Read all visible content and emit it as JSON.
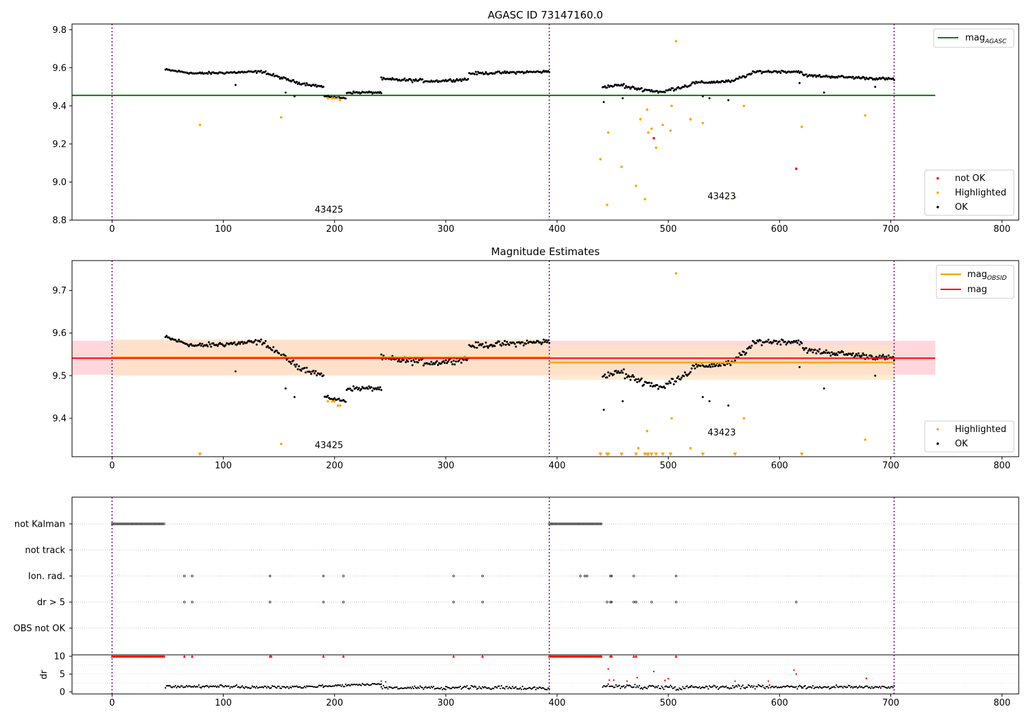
{
  "colors": {
    "ok": "#000000",
    "highlighted": "#ffa500",
    "not_ok": "#ff0000",
    "agasc_line": "#008000",
    "obsid_line": "#ffa500",
    "mag_line": "#ff0000",
    "obs_divider": "#800080",
    "band_obsid": "#ffe4c4",
    "band_mag": "#ffb6c1",
    "flag_grid": "#b0b0b0"
  },
  "chart_data": [
    {
      "type": "scatter",
      "title": "AGASC ID 73147160.0",
      "xlabel": "",
      "ylabel": "",
      "xlim": [
        -36,
        815
      ],
      "ylim": [
        8.8,
        9.83
      ],
      "x_ticks": [
        "0",
        "100",
        "200",
        "300",
        "400",
        "500",
        "600",
        "700",
        "800"
      ],
      "y_ticks": [
        "8.8",
        "9.0",
        "9.2",
        "9.4",
        "9.6",
        "9.8"
      ],
      "hline_mag_agasc": {
        "y": 9.455,
        "x_range": [
          -36,
          740
        ]
      },
      "obs_dividers": [
        0,
        393,
        703
      ],
      "obsid_labels": [
        {
          "text": "43425",
          "x": 195,
          "y": 8.84
        },
        {
          "text": "43423",
          "x": 548,
          "y": 8.91
        }
      ],
      "legend_lines": [
        {
          "label": "mag",
          "subscript": "AGASC"
        }
      ],
      "legend_points": [
        {
          "label": "not OK"
        },
        {
          "label": "Highlighted"
        },
        {
          "label": "OK"
        }
      ],
      "ok_segments": [
        {
          "x": [
            48,
            74
          ],
          "y": [
            9.59,
            9.57
          ],
          "noise": 0.008
        },
        {
          "x": [
            75,
            138
          ],
          "y": [
            9.57,
            9.58
          ],
          "noise": 0.009
        },
        {
          "x": [
            139,
            168
          ],
          "y": [
            9.57,
            9.52
          ],
          "noise": 0.01
        },
        {
          "x": [
            169,
            190
          ],
          "y": [
            9.52,
            9.5
          ],
          "noise": 0.01
        },
        {
          "x": [
            191,
            210
          ],
          "y": [
            9.45,
            9.44
          ],
          "noise": 0.005
        },
        {
          "x": [
            211,
            242
          ],
          "y": [
            9.47,
            9.47
          ],
          "noise": 0.008
        },
        {
          "x": [
            242,
            290
          ],
          "y": [
            9.54,
            9.53
          ],
          "noise": 0.012
        },
        {
          "x": [
            291,
            320
          ],
          "y": [
            9.53,
            9.54
          ],
          "noise": 0.01
        },
        {
          "x": [
            321,
            393
          ],
          "y": [
            9.57,
            9.58
          ],
          "noise": 0.01
        },
        {
          "x": [
            441,
            460
          ],
          "y": [
            9.5,
            9.51
          ],
          "noise": 0.01
        },
        {
          "x": [
            461,
            497
          ],
          "y": [
            9.5,
            9.47
          ],
          "noise": 0.012
        },
        {
          "x": [
            498,
            520
          ],
          "y": [
            9.48,
            9.51
          ],
          "noise": 0.012
        },
        {
          "x": [
            521,
            560
          ],
          "y": [
            9.52,
            9.53
          ],
          "noise": 0.01
        },
        {
          "x": [
            561,
            580
          ],
          "y": [
            9.54,
            9.58
          ],
          "noise": 0.012
        },
        {
          "x": [
            581,
            620
          ],
          "y": [
            9.58,
            9.58
          ],
          "noise": 0.01
        },
        {
          "x": [
            621,
            703
          ],
          "y": [
            9.56,
            9.54
          ],
          "noise": 0.01
        }
      ],
      "ok_outliers": [
        [
          111,
          9.51
        ],
        [
          156,
          9.47
        ],
        [
          164,
          9.45
        ],
        [
          442,
          9.42
        ],
        [
          459,
          9.44
        ],
        [
          531,
          9.45
        ],
        [
          537,
          9.44
        ],
        [
          554,
          9.43
        ],
        [
          618,
          9.52
        ],
        [
          640,
          9.47
        ],
        [
          686,
          9.5
        ]
      ],
      "highlighted": [
        [
          79,
          9.3
        ],
        [
          152,
          9.34
        ],
        [
          194,
          9.44
        ],
        [
          198,
          9.44
        ],
        [
          200,
          9.44
        ],
        [
          203,
          9.44
        ],
        [
          205,
          9.43
        ],
        [
          439,
          9.12
        ],
        [
          445,
          8.88
        ],
        [
          446,
          9.26
        ],
        [
          458,
          9.08
        ],
        [
          471,
          8.98
        ],
        [
          475,
          9.33
        ],
        [
          479,
          8.91
        ],
        [
          481,
          9.38
        ],
        [
          482,
          9.26
        ],
        [
          485,
          9.28
        ],
        [
          489,
          9.18
        ],
        [
          495,
          9.3
        ],
        [
          502,
          9.27
        ],
        [
          503,
          9.4
        ],
        [
          507,
          9.74
        ],
        [
          520,
          9.33
        ],
        [
          531,
          9.31
        ],
        [
          560,
          8.92
        ],
        [
          568,
          9.4
        ],
        [
          620,
          9.29
        ],
        [
          677,
          9.35
        ]
      ],
      "not_ok": [
        [
          487,
          9.23
        ],
        [
          615,
          9.07
        ]
      ]
    },
    {
      "type": "scatter",
      "title": "Magnitude Estimates",
      "xlabel": "",
      "ylabel": "",
      "xlim": [
        -36,
        815
      ],
      "ylim": [
        9.31,
        9.77
      ],
      "x_ticks": [
        "0",
        "100",
        "200",
        "300",
        "400",
        "500",
        "600",
        "700",
        "800"
      ],
      "y_ticks": [
        "9.4",
        "9.5",
        "9.6",
        "9.7"
      ],
      "mag": {
        "y": 9.541,
        "band": [
          9.502,
          9.582
        ],
        "x_range": [
          -36,
          740
        ]
      },
      "mag_obsid": [
        {
          "x_range": [
            0,
            393
          ],
          "y": 9.543,
          "band": [
            9.5,
            9.585
          ]
        },
        {
          "x_range": [
            393,
            703
          ],
          "y": 9.531,
          "band": [
            9.49,
            9.572
          ]
        }
      ],
      "obs_dividers": [
        0,
        393,
        703
      ],
      "obsid_labels": [
        {
          "text": "43425",
          "x": 195,
          "y": 9.33
        },
        {
          "text": "43423",
          "x": 548,
          "y": 9.36
        }
      ],
      "legend_lines": [
        {
          "label": "mag",
          "subscript": "OBSID"
        },
        {
          "label": "mag"
        }
      ],
      "legend_points": [
        {
          "label": "Highlighted"
        },
        {
          "label": "OK"
        }
      ],
      "ok_segments": [
        {
          "x": [
            48,
            74
          ],
          "y": [
            9.59,
            9.57
          ],
          "noise": 0.008
        },
        {
          "x": [
            75,
            138
          ],
          "y": [
            9.57,
            9.58
          ],
          "noise": 0.009
        },
        {
          "x": [
            139,
            168
          ],
          "y": [
            9.57,
            9.52
          ],
          "noise": 0.01
        },
        {
          "x": [
            169,
            190
          ],
          "y": [
            9.52,
            9.5
          ],
          "noise": 0.01
        },
        {
          "x": [
            191,
            210
          ],
          "y": [
            9.45,
            9.44
          ],
          "noise": 0.005
        },
        {
          "x": [
            211,
            242
          ],
          "y": [
            9.47,
            9.47
          ],
          "noise": 0.008
        },
        {
          "x": [
            242,
            290
          ],
          "y": [
            9.54,
            9.53
          ],
          "noise": 0.012
        },
        {
          "x": [
            291,
            320
          ],
          "y": [
            9.53,
            9.54
          ],
          "noise": 0.01
        },
        {
          "x": [
            321,
            393
          ],
          "y": [
            9.57,
            9.58
          ],
          "noise": 0.01
        },
        {
          "x": [
            441,
            460
          ],
          "y": [
            9.5,
            9.51
          ],
          "noise": 0.01
        },
        {
          "x": [
            461,
            497
          ],
          "y": [
            9.5,
            9.47
          ],
          "noise": 0.012
        },
        {
          "x": [
            498,
            520
          ],
          "y": [
            9.48,
            9.51
          ],
          "noise": 0.012
        },
        {
          "x": [
            521,
            560
          ],
          "y": [
            9.52,
            9.53
          ],
          "noise": 0.01
        },
        {
          "x": [
            561,
            580
          ],
          "y": [
            9.54,
            9.58
          ],
          "noise": 0.012
        },
        {
          "x": [
            581,
            620
          ],
          "y": [
            9.58,
            9.58
          ],
          "noise": 0.01
        },
        {
          "x": [
            621,
            703
          ],
          "y": [
            9.56,
            9.54
          ],
          "noise": 0.01
        }
      ],
      "ok_outliers": [
        [
          111,
          9.51
        ],
        [
          156,
          9.47
        ],
        [
          164,
          9.45
        ],
        [
          442,
          9.42
        ],
        [
          459,
          9.44
        ],
        [
          531,
          9.45
        ],
        [
          537,
          9.44
        ],
        [
          554,
          9.43
        ],
        [
          618,
          9.52
        ],
        [
          640,
          9.47
        ],
        [
          686,
          9.5
        ]
      ],
      "highlighted": [
        [
          152,
          9.34
        ],
        [
          194,
          9.44
        ],
        [
          198,
          9.44
        ],
        [
          200,
          9.44
        ],
        [
          203,
          9.43
        ],
        [
          205,
          9.43
        ],
        [
          473,
          9.33
        ],
        [
          481,
          9.37
        ],
        [
          503,
          9.4
        ],
        [
          507,
          9.74
        ],
        [
          520,
          9.33
        ],
        [
          568,
          9.4
        ],
        [
          677,
          9.35
        ]
      ],
      "below_range_markers": [
        79,
        439,
        445,
        446,
        458,
        471,
        479,
        481,
        482,
        485,
        489,
        495,
        502,
        531,
        560,
        620
      ]
    },
    {
      "type": "scatter",
      "title": "",
      "xlabel": "",
      "ylabel": "dr",
      "xlim": [
        -36,
        815
      ],
      "flag_rows": [
        "not Kalman",
        "not track",
        "Ion. rad.",
        "dr > 5",
        "OBS not OK"
      ],
      "x_ticks": [
        "0",
        "100",
        "200",
        "300",
        "400",
        "500",
        "600",
        "700",
        "800"
      ],
      "dr_ylim": [
        0,
        10
      ],
      "dr_y_ticks": [
        "0",
        "5",
        "10"
      ],
      "obs_dividers": [
        0,
        393,
        703
      ],
      "not_kalman_ranges": [
        [
          0,
          48
        ],
        [
          393,
          440
        ]
      ],
      "ion_rad": [
        65,
        72,
        142,
        190,
        208,
        307,
        333,
        421,
        425,
        427,
        448,
        449,
        469,
        507
      ],
      "dr_gt5": [
        65,
        72,
        142,
        190,
        208,
        307,
        333,
        445,
        448,
        449,
        469,
        471,
        485,
        507,
        615
      ],
      "dr_clipped": [
        65,
        72,
        142,
        143,
        190,
        208,
        307,
        333,
        448,
        449,
        469,
        471,
        507
      ],
      "dr_segments": [
        {
          "x": [
            48,
            118
          ],
          "y": [
            1.5,
            1.5
          ],
          "noise": 0.6
        },
        {
          "x": [
            118,
            190
          ],
          "y": [
            1.2,
            1.6
          ],
          "noise": 0.6
        },
        {
          "x": [
            190,
            242
          ],
          "y": [
            1.6,
            2.3
          ],
          "noise": 0.5
        },
        {
          "x": [
            242,
            300
          ],
          "y": [
            1.2,
            1.0
          ],
          "noise": 0.7
        },
        {
          "x": [
            300,
            393
          ],
          "y": [
            1.3,
            1.0
          ],
          "noise": 0.7
        },
        {
          "x": [
            441,
            520
          ],
          "y": [
            1.6,
            1.2
          ],
          "noise": 1.0
        },
        {
          "x": [
            520,
            620
          ],
          "y": [
            1.4,
            1.5
          ],
          "noise": 0.8
        },
        {
          "x": [
            620,
            703
          ],
          "y": [
            1.3,
            1.4
          ],
          "noise": 0.7
        }
      ],
      "dr_red_points": [
        [
          242,
          3.0
        ],
        [
          246,
          2.8
        ],
        [
          446,
          6.4
        ],
        [
          447,
          3.3
        ],
        [
          451,
          3.3
        ],
        [
          463,
          3.0
        ],
        [
          472,
          4.0
        ],
        [
          487,
          5.7
        ],
        [
          497,
          3.2
        ],
        [
          500,
          3.7
        ],
        [
          560,
          3.0
        ],
        [
          590,
          3.0
        ],
        [
          613,
          6.1
        ],
        [
          615,
          5.0
        ],
        [
          678,
          3.8
        ]
      ]
    }
  ]
}
